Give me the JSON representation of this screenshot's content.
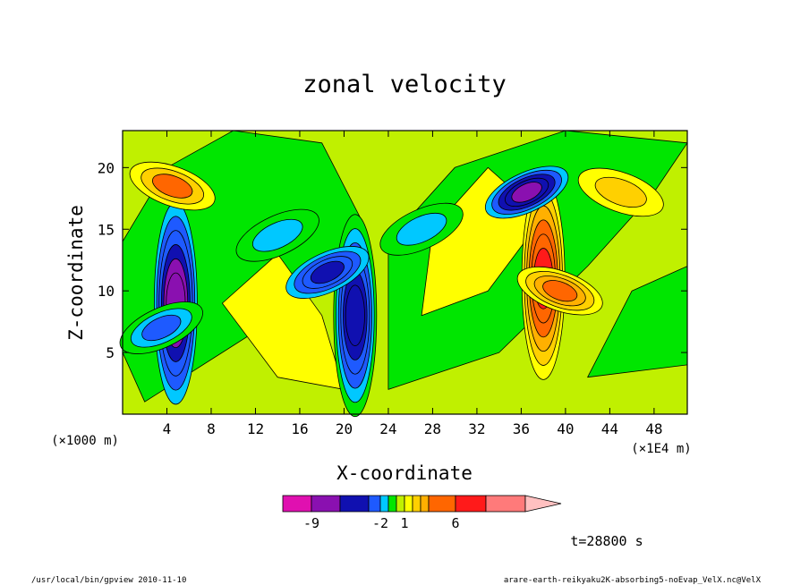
{
  "chart_data": {
    "type": "heatmap",
    "title": "zonal velocity",
    "xlabel": "X-coordinate",
    "ylabel": "Z-coordinate",
    "x_unit_label": "(×1E4 m)",
    "y_unit_label": "(×1000 m)",
    "xlim": [
      0,
      51
    ],
    "ylim": [
      0,
      23
    ],
    "x_ticks": [
      4,
      8,
      12,
      16,
      20,
      24,
      28,
      32,
      36,
      40,
      44,
      48
    ],
    "y_ticks": [
      5,
      10,
      15,
      20
    ],
    "colorbar": {
      "levels": [
        -12,
        -9,
        -6,
        -4,
        -2,
        -1,
        0,
        1,
        2,
        3,
        4,
        6,
        9,
        12,
        16
      ],
      "colors": [
        "#e010b0",
        "#8a10b0",
        "#1010b0",
        "#1e5aff",
        "#00c8ff",
        "#00e600",
        "#c0f000",
        "#ffff00",
        "#ffd000",
        "#ffb000",
        "#ff6600",
        "#ff1a1a",
        "#ff7a7a",
        "#ffc0c0"
      ],
      "tick_values": [
        "-9",
        "-2",
        "1",
        "6"
      ],
      "extend": "max"
    },
    "features": [
      {
        "kind": "core",
        "x": 4.8,
        "z": 9.0,
        "v": -8
      },
      {
        "kind": "core",
        "x": 21.0,
        "z": 8.0,
        "v": -6
      },
      {
        "kind": "core",
        "x": 38.0,
        "z": 11.0,
        "v": 6
      },
      {
        "kind": "blob",
        "x": 4.5,
        "z": 18.5,
        "v": 4
      },
      {
        "kind": "blob",
        "x": 36.5,
        "z": 18.0,
        "v": -7
      },
      {
        "kind": "blob",
        "x": 18.5,
        "z": 11.5,
        "v": -5
      },
      {
        "kind": "blob",
        "x": 39.5,
        "z": 10.0,
        "v": 5
      },
      {
        "kind": "blob",
        "x": 3.5,
        "z": 7.0,
        "v": -3
      },
      {
        "kind": "blob",
        "x": 14.0,
        "z": 14.5,
        "v": -2
      },
      {
        "kind": "blob",
        "x": 27.0,
        "z": 15.0,
        "v": -2
      },
      {
        "kind": "blob",
        "x": 45.0,
        "z": 18.0,
        "v": 2
      }
    ]
  },
  "footer": {
    "time": "t=28800 s",
    "left": "/usr/local/bin/gpview   2010-11-10",
    "right": "arare-earth-reikyaku2K-absorbing5-noEvap_VelX.nc@VelX"
  }
}
